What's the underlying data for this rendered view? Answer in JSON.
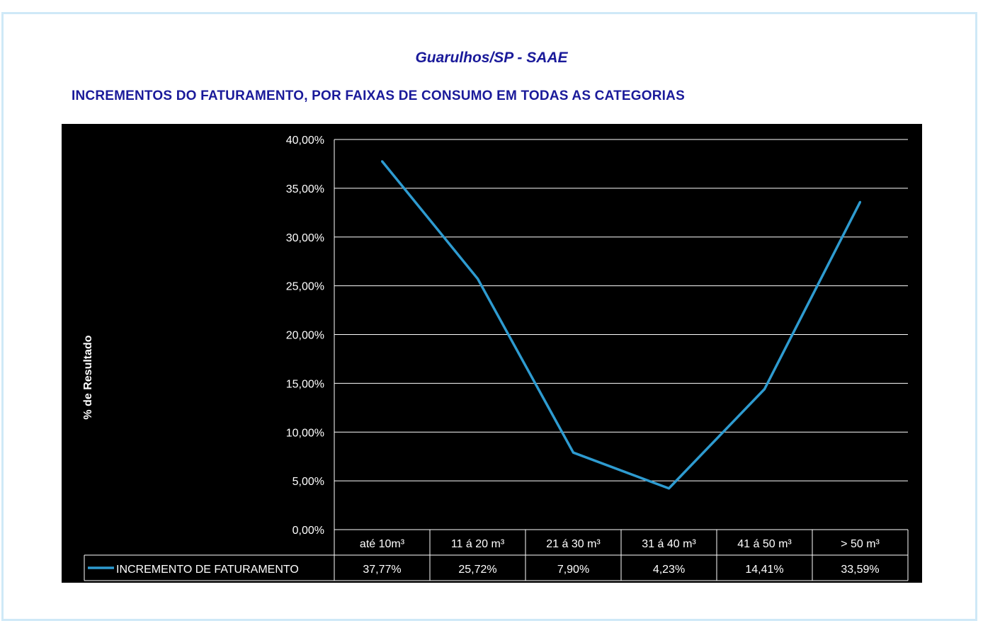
{
  "header": {
    "subtitle": "Guarulhos/SP - SAAE",
    "title": "INCREMENTOS DO FATURAMENTO, POR FAIXAS DE CONSUMO EM TODAS AS CATEGORIAS"
  },
  "colors": {
    "title": "#1a1a9a",
    "plot_background": "#000000",
    "line": "#2e9bd0",
    "grid": "#ffffff",
    "frame": "#cfe9f7"
  },
  "chart_data": {
    "type": "line",
    "title": "",
    "ylabel": "% de Resultado",
    "xlabel": "",
    "ylim": [
      0,
      40
    ],
    "y_ticks": [
      "0,00%",
      "5,00%",
      "10,00%",
      "15,00%",
      "20,00%",
      "25,00%",
      "30,00%",
      "35,00%",
      "40,00%"
    ],
    "categories": [
      "até 10m³",
      "11 á 20 m³",
      "21 á 30 m³",
      "31 á 40 m³",
      "41 á 50 m³",
      "> 50 m³"
    ],
    "series": [
      {
        "name": "INCREMENTO DE FATURAMENTO",
        "values": [
          37.77,
          25.72,
          7.9,
          4.23,
          14.41,
          33.59
        ],
        "value_labels": [
          "37,77%",
          "25,72%",
          "7,90%",
          "4,23%",
          "14,41%",
          "33,59%"
        ]
      }
    ],
    "grid": true,
    "legend": "data-table-bottom"
  }
}
